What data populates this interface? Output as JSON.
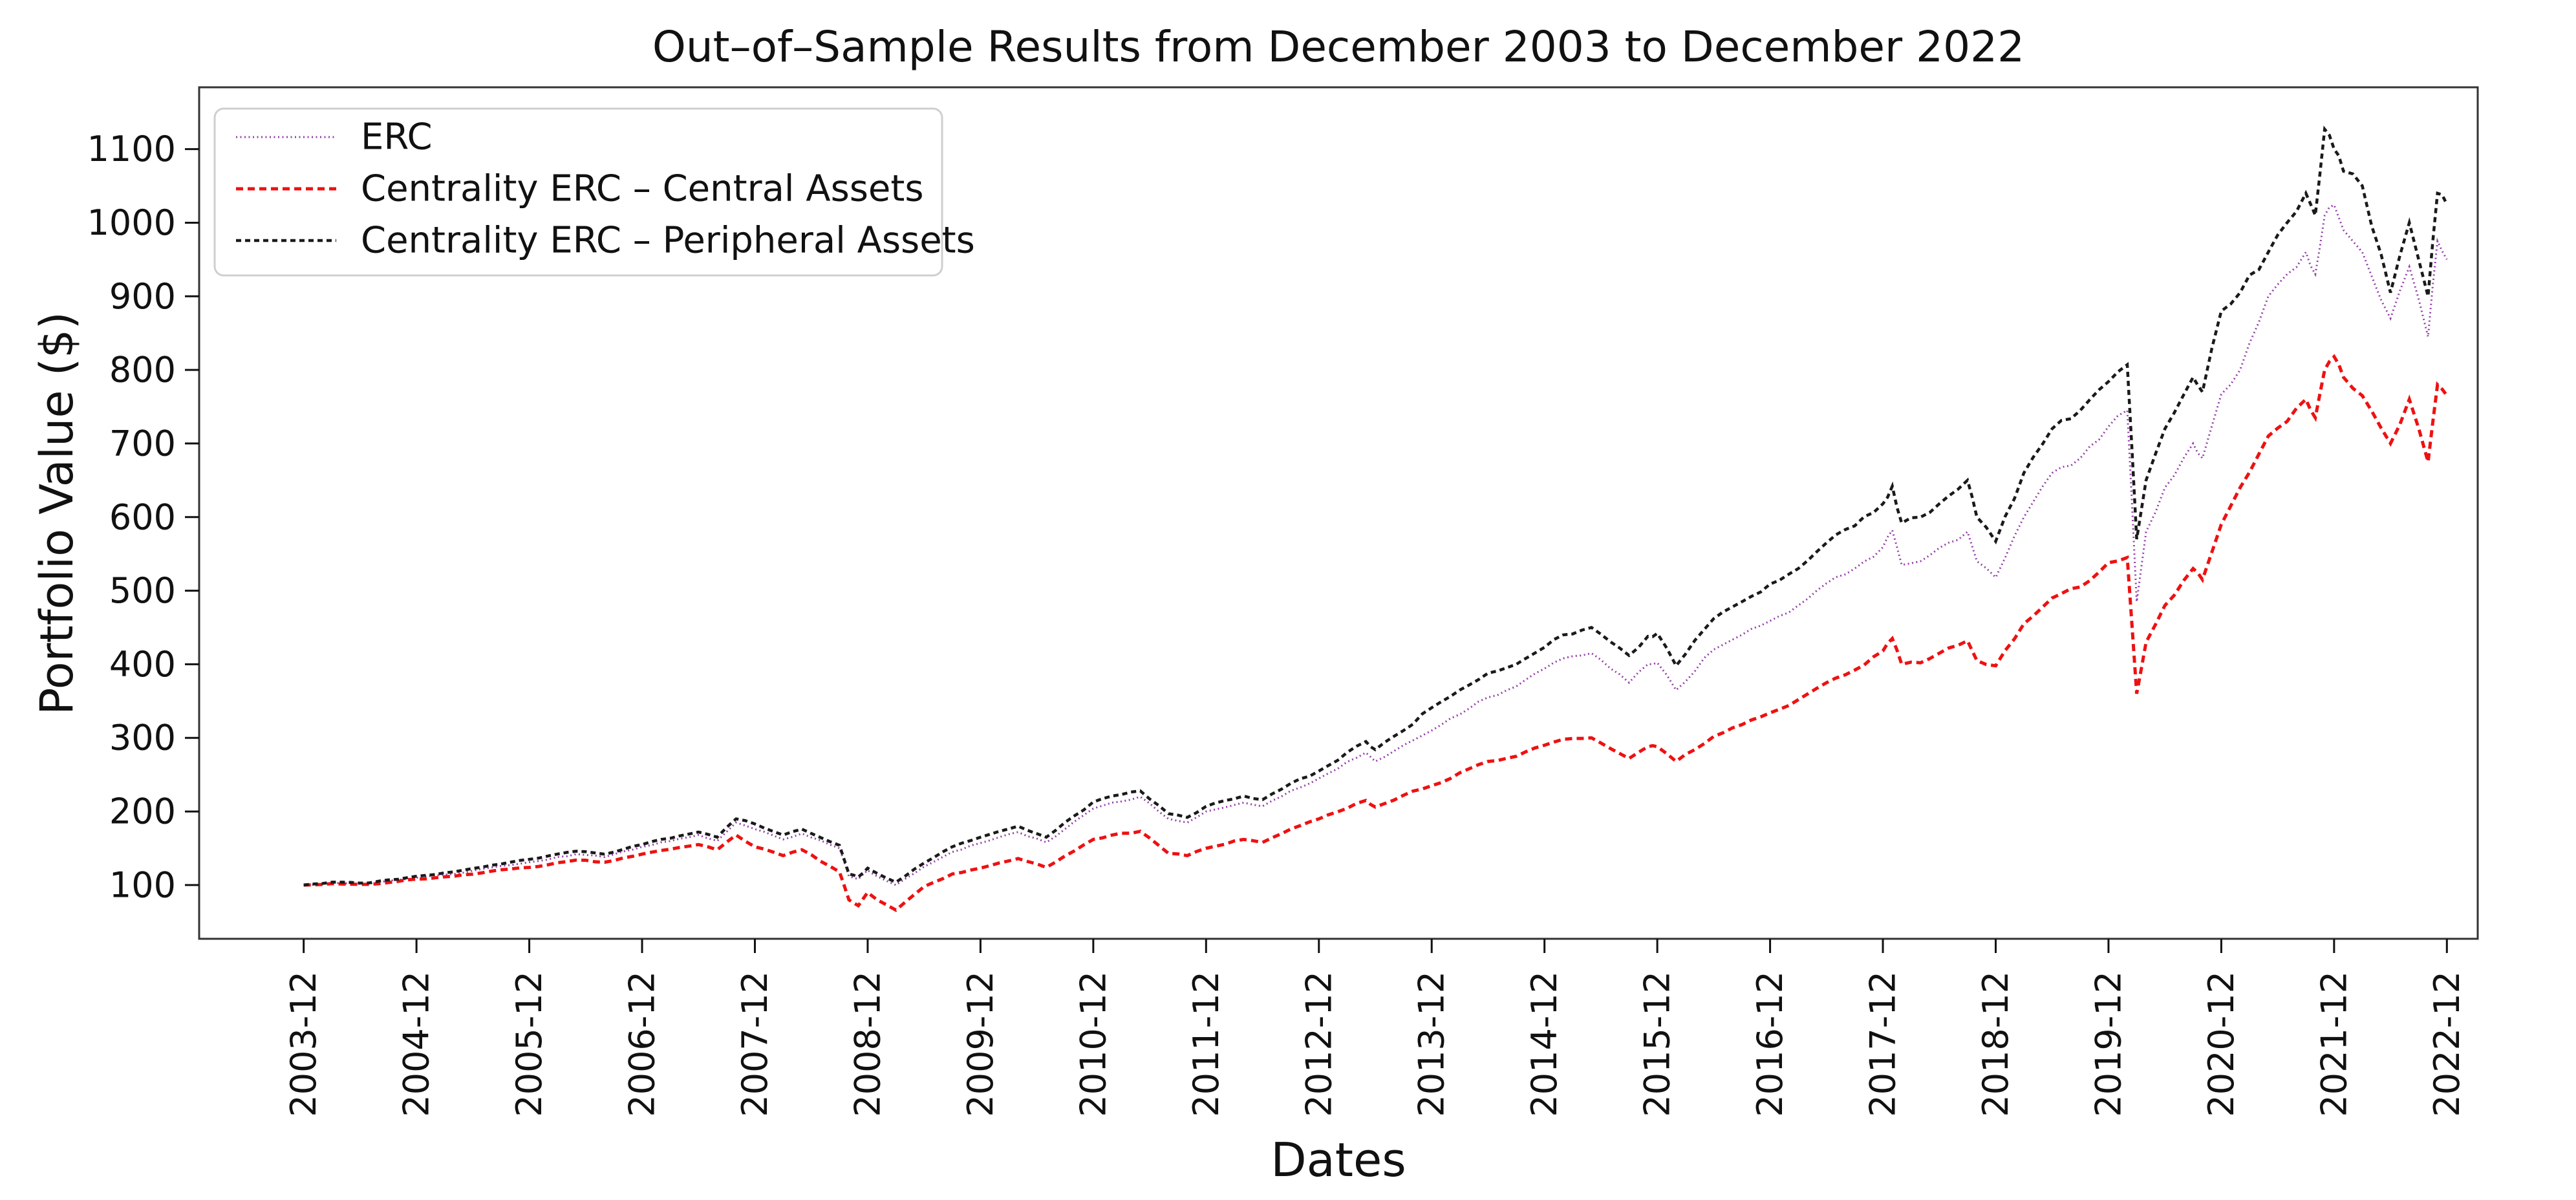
{
  "page": {
    "background": "#ffffff"
  },
  "chart_data": {
    "type": "line",
    "title": "Out–of–Sample Results from December 2003 to December 2022",
    "xlabel": "Dates",
    "ylabel": "Portfolio Value ($)",
    "x_tick_labels": [
      "2003-12",
      "2004-12",
      "2005-12",
      "2006-12",
      "2007-12",
      "2008-12",
      "2009-12",
      "2010-12",
      "2011-12",
      "2012-12",
      "2013-12",
      "2014-12",
      "2015-12",
      "2016-12",
      "2017-12",
      "2018-12",
      "2019-12",
      "2020-12",
      "2021-12",
      "2022-12"
    ],
    "y_tick_values": [
      100,
      200,
      300,
      400,
      500,
      600,
      700,
      800,
      900,
      1000,
      1100
    ],
    "ylim": [
      27,
      1184
    ],
    "xlim_years": [
      2002.99,
      2023.19
    ],
    "grid": false,
    "legend_position": "upper-left",
    "frame_color": "#333333",
    "series": [
      {
        "name": "ERC",
        "color": "#9440a8",
        "style": "densely-dotted",
        "dash": "2 4.5",
        "width": 3
      },
      {
        "name": "Centrality ERC – Central Assets",
        "color": "#ee1111",
        "style": "dashed",
        "dash": "11 7",
        "width": 5
      },
      {
        "name": "Centrality ERC – Peripheral Assets",
        "color": "#1a1a1a",
        "style": "dashed",
        "dash": "8 6",
        "width": 4.5
      }
    ],
    "points_format": [
      "date",
      "ERC",
      "Centrality ERC – Central Assets",
      "Centrality ERC – Peripheral Assets"
    ],
    "points": [
      [
        "2003-12",
        100,
        100,
        100
      ],
      [
        "2004-03",
        103,
        102,
        104
      ],
      [
        "2004-07",
        102,
        101,
        103
      ],
      [
        "2004-12",
        110,
        108,
        112
      ],
      [
        "2005-04",
        115,
        112,
        118
      ],
      [
        "2005-08",
        124,
        119,
        127
      ],
      [
        "2005-12",
        131,
        124,
        135
      ],
      [
        "2006-05",
        142,
        134,
        146
      ],
      [
        "2006-08",
        138,
        131,
        142
      ],
      [
        "2006-12",
        152,
        142,
        155
      ],
      [
        "2007-02",
        158,
        147,
        162
      ],
      [
        "2007-06",
        168,
        155,
        172
      ],
      [
        "2007-08",
        160,
        148,
        165
      ],
      [
        "2007-10",
        185,
        168,
        190
      ],
      [
        "2007-12",
        176,
        152,
        183
      ],
      [
        "2008-03",
        162,
        140,
        168
      ],
      [
        "2008-05",
        170,
        148,
        176
      ],
      [
        "2008-09",
        150,
        118,
        154
      ],
      [
        "2008-10",
        112,
        80,
        115
      ],
      [
        "2008-11",
        108,
        72,
        111
      ],
      [
        "2008-12",
        120,
        90,
        123
      ],
      [
        "2009-01",
        112,
        80,
        116
      ],
      [
        "2009-03",
        100,
        66,
        104
      ],
      [
        "2009-06",
        125,
        98,
        130
      ],
      [
        "2009-09",
        145,
        115,
        152
      ],
      [
        "2009-12",
        157,
        123,
        165
      ],
      [
        "2010-04",
        172,
        136,
        180
      ],
      [
        "2010-07",
        158,
        124,
        165
      ],
      [
        "2010-12",
        204,
        162,
        213
      ],
      [
        "2011-02",
        212,
        168,
        221
      ],
      [
        "2011-05",
        220,
        173,
        228
      ],
      [
        "2011-08",
        190,
        143,
        197
      ],
      [
        "2011-10",
        185,
        140,
        192
      ],
      [
        "2011-12",
        200,
        150,
        207
      ],
      [
        "2012-04",
        212,
        162,
        221
      ],
      [
        "2012-06",
        207,
        158,
        216
      ],
      [
        "2012-09",
        228,
        176,
        238
      ],
      [
        "2012-12",
        245,
        190,
        255
      ],
      [
        "2013-05",
        280,
        215,
        295
      ],
      [
        "2013-06",
        268,
        206,
        284
      ],
      [
        "2013-09",
        290,
        222,
        310
      ],
      [
        "2013-12",
        310,
        235,
        341
      ],
      [
        "2014-06",
        355,
        268,
        388
      ],
      [
        "2014-09",
        370,
        275,
        400
      ],
      [
        "2014-12",
        394,
        290,
        423
      ],
      [
        "2015-02",
        408,
        298,
        440
      ],
      [
        "2015-05",
        415,
        300,
        450
      ],
      [
        "2015-09",
        375,
        272,
        412
      ],
      [
        "2015-11",
        400,
        288,
        438
      ],
      [
        "2015-12",
        402,
        288,
        442
      ],
      [
        "2016-02",
        365,
        268,
        398
      ],
      [
        "2016-06",
        420,
        302,
        462
      ],
      [
        "2016-09",
        440,
        318,
        485
      ],
      [
        "2016-12",
        459,
        334,
        509
      ],
      [
        "2017-03",
        480,
        352,
        530
      ],
      [
        "2017-06",
        510,
        375,
        565
      ],
      [
        "2017-09",
        530,
        392,
        588
      ],
      [
        "2017-12",
        559,
        418,
        618
      ],
      [
        "2018-01",
        582,
        435,
        642
      ],
      [
        "2018-02",
        535,
        400,
        592
      ],
      [
        "2018-04",
        540,
        402,
        600
      ],
      [
        "2018-09",
        580,
        432,
        650
      ],
      [
        "2018-10",
        540,
        405,
        600
      ],
      [
        "2018-12",
        518,
        398,
        567
      ],
      [
        "2019-03",
        600,
        455,
        660
      ],
      [
        "2019-06",
        660,
        490,
        720
      ],
      [
        "2019-09",
        680,
        505,
        745
      ],
      [
        "2019-12",
        723,
        538,
        784
      ],
      [
        "2020-02",
        745,
        545,
        807
      ],
      [
        "2020-03",
        485,
        360,
        570
      ],
      [
        "2020-04",
        580,
        430,
        650
      ],
      [
        "2020-06",
        640,
        480,
        720
      ],
      [
        "2020-09",
        700,
        530,
        790
      ],
      [
        "2020-10",
        680,
        515,
        770
      ],
      [
        "2020-12",
        767,
        590,
        880
      ],
      [
        "2021-02",
        800,
        640,
        905
      ],
      [
        "2021-05",
        900,
        710,
        960
      ],
      [
        "2021-07",
        930,
        730,
        1000
      ],
      [
        "2021-09",
        960,
        760,
        1040
      ],
      [
        "2021-10",
        930,
        735,
        1010
      ],
      [
        "2021-11",
        1010,
        800,
        1127
      ],
      [
        "2021-12",
        1024,
        818,
        1100
      ],
      [
        "2022-01",
        990,
        790,
        1070
      ],
      [
        "2022-03",
        960,
        765,
        1050
      ],
      [
        "2022-06",
        870,
        700,
        905
      ],
      [
        "2022-08",
        940,
        760,
        1000
      ],
      [
        "2022-10",
        845,
        675,
        900
      ],
      [
        "2022-11",
        975,
        780,
        1040
      ],
      [
        "2022-12",
        950,
        765,
        1025
      ]
    ]
  }
}
